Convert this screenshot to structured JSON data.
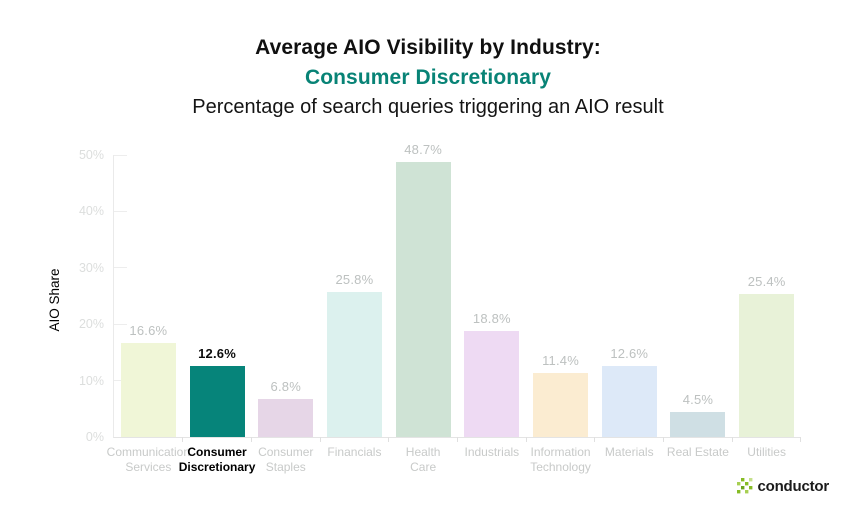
{
  "header": {
    "title_line1": "Average AIO Visibility by Industry:",
    "title_line2": "Consumer Discretionary",
    "subtitle": "Percentage of search queries triggering an AIO result",
    "accent_color": "#088376"
  },
  "chart_data": {
    "type": "bar",
    "title": "Average AIO Visibility by Industry: Consumer Discretionary",
    "subtitle": "Percentage of search queries triggering an AIO result",
    "xlabel": "",
    "ylabel": "AIO Share",
    "ylim": [
      0,
      50
    ],
    "ytick_values": [
      0,
      10,
      20,
      30,
      40,
      50
    ],
    "ytick_labels": [
      "0%",
      "10%",
      "20%",
      "30%",
      "40%",
      "50%"
    ],
    "grid": false,
    "legend": false,
    "highlight_index": 1,
    "categories": [
      "Communication Services",
      "Consumer Discretionary",
      "Consumer Staples",
      "Financials",
      "Health Care",
      "Industrials",
      "Information Technology",
      "Materials",
      "Real Estate",
      "Utilities"
    ],
    "category_lines": [
      "Communication\nServices",
      "Consumer\nDiscretionary",
      "Consumer\nStaples",
      "Financials",
      "Health\nCare",
      "Industrials",
      "Information\nTechnology",
      "Materials",
      "Real Estate",
      "Utilities"
    ],
    "values": [
      16.6,
      12.6,
      6.8,
      25.8,
      48.7,
      18.8,
      11.4,
      12.6,
      4.5,
      25.4
    ],
    "value_labels": [
      "16.6%",
      "12.6%",
      "6.8%",
      "25.8%",
      "48.7%",
      "18.8%",
      "11.4%",
      "12.6%",
      "4.5%",
      "25.4%"
    ],
    "bar_colors": [
      "#f0f6d7",
      "#06847a",
      "#e6d6e7",
      "#dcf1ee",
      "#cfe3d5",
      "#eedaf3",
      "#fbecd1",
      "#dde9f8",
      "#cfdfe4",
      "#e8f2d8"
    ],
    "style_colors": {
      "highlight_bar": "#06847a",
      "value_label": "#bdc1c0",
      "axis_line": "#e9e9e9",
      "ytick_label": "#dcdedd",
      "xtick_label": "#c8cac9"
    }
  },
  "footer": {
    "logo_text": "conductor",
    "logo_icon": "conductor-pixel-grid-icon",
    "logo_green": "#86bc25"
  }
}
